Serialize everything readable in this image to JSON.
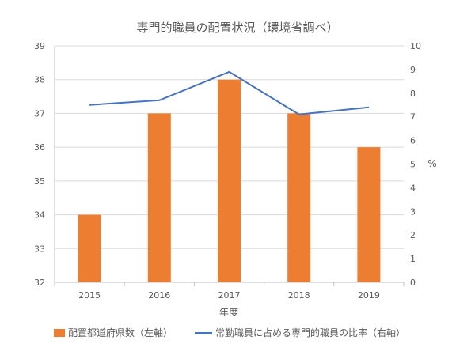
{
  "chart_data": {
    "type": "bar+line",
    "title": "専門的職員の配置状況（環境省調べ）",
    "xlabel": "年度",
    "ylabel_right": "%",
    "categories": [
      "2015",
      "2016",
      "2017",
      "2018",
      "2019"
    ],
    "left_axis": {
      "min": 32,
      "max": 39,
      "ticks": [
        "32",
        "33",
        "34",
        "35",
        "36",
        "37",
        "38",
        "39"
      ]
    },
    "right_axis": {
      "min": 0,
      "max": 10,
      "ticks": [
        "0",
        "1",
        "2",
        "3",
        "4",
        "5",
        "6",
        "7",
        "8",
        "9",
        "10"
      ]
    },
    "grid": true,
    "legend_position": "bottom",
    "series": [
      {
        "name": "配置都道府県数（左軸）",
        "type": "bar",
        "axis": "left",
        "color": "#ED7D31",
        "values": [
          34,
          37,
          38,
          37,
          36
        ]
      },
      {
        "name": "常勤職員に占める専門的職員の比率（右軸）",
        "type": "line",
        "axis": "right",
        "color": "#4472C4",
        "values": [
          7.5,
          7.7,
          8.9,
          7.1,
          7.4
        ]
      }
    ]
  }
}
